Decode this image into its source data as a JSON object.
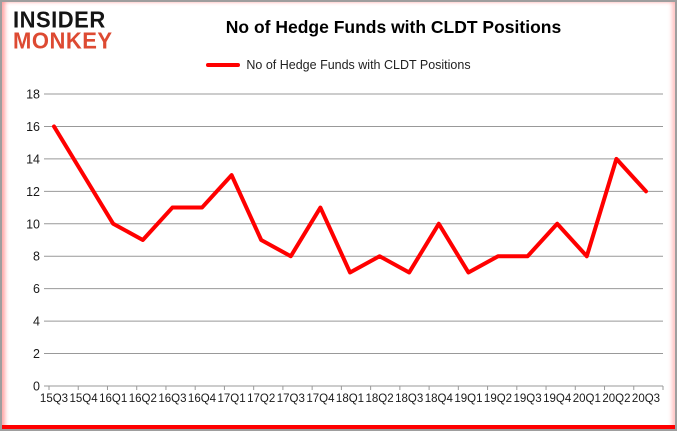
{
  "logo": {
    "line1": "INSIDER",
    "line2": "MONKEY",
    "line1_color": "#141414",
    "line2_color": "#dd4a32"
  },
  "header": {
    "title": "No of Hedge Funds with CLDT Positions"
  },
  "legend": {
    "label": "No of Hedge Funds with CLDT Positions",
    "line_color": "#ff0000"
  },
  "chart_data": {
    "type": "line",
    "title": "No of Hedge Funds with CLDT Positions",
    "categories": [
      "15Q3",
      "15Q4",
      "16Q1",
      "16Q2",
      "16Q3",
      "16Q4",
      "17Q1",
      "17Q2",
      "17Q3",
      "17Q4",
      "18Q1",
      "18Q2",
      "18Q3",
      "18Q4",
      "19Q1",
      "19Q2",
      "19Q3",
      "19Q4",
      "20Q1",
      "20Q2",
      "20Q3"
    ],
    "series": [
      {
        "name": "No of Hedge Funds with CLDT Positions",
        "color": "#ff0000",
        "values": [
          16,
          13,
          10,
          9,
          11,
          11,
          13,
          9,
          8,
          11,
          7,
          8,
          7,
          10,
          7,
          8,
          8,
          10,
          8,
          14,
          12
        ]
      }
    ],
    "ylim": [
      0,
      18
    ],
    "ytick_step": 2,
    "grid": true,
    "legend_position": "top",
    "gridline_color": "#999999",
    "axis_color": "#999999",
    "label_color": "#1a1a1a",
    "xlabel": "",
    "ylabel": ""
  }
}
